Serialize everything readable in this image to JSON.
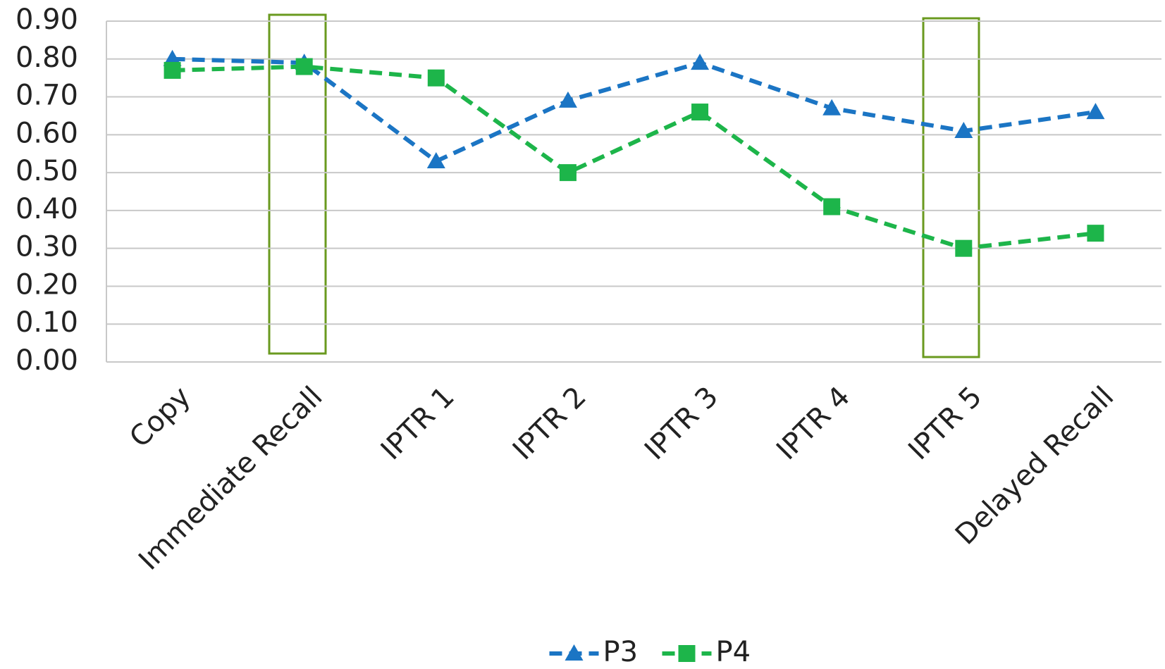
{
  "chart_data": {
    "type": "line",
    "categories": [
      "Copy",
      "Immediate Recall",
      "IPTR 1",
      "IPTR 2",
      "IPTR 3",
      "IPTR 4",
      "IPTR 5",
      "Delayed Recall"
    ],
    "series": [
      {
        "name": "P3",
        "color": "#1b75c4",
        "values": [
          0.8,
          0.79,
          0.53,
          0.69,
          0.79,
          0.67,
          0.61,
          0.66
        ]
      },
      {
        "name": "P4",
        "color": "#1db54a",
        "values": [
          0.77,
          0.78,
          0.75,
          0.5,
          0.66,
          0.41,
          0.3,
          0.34
        ]
      }
    ],
    "ylim": [
      0,
      0.9
    ],
    "yticks": [
      {
        "value": 0,
        "label": "0.00"
      },
      {
        "value": 0.1,
        "label": "0.10"
      },
      {
        "value": 0.2,
        "label": "0.20"
      },
      {
        "value": 0.3,
        "label": "0.30"
      },
      {
        "value": 0.4,
        "label": "0.40"
      },
      {
        "value": 0.5,
        "label": "0.50"
      },
      {
        "value": 0.6,
        "label": "0.60"
      },
      {
        "value": 0.7,
        "label": "0.70"
      },
      {
        "value": 0.8,
        "label": "0.80"
      },
      {
        "value": 0.9,
        "label": "0.90"
      }
    ],
    "grid": true,
    "legend": "bottom"
  }
}
